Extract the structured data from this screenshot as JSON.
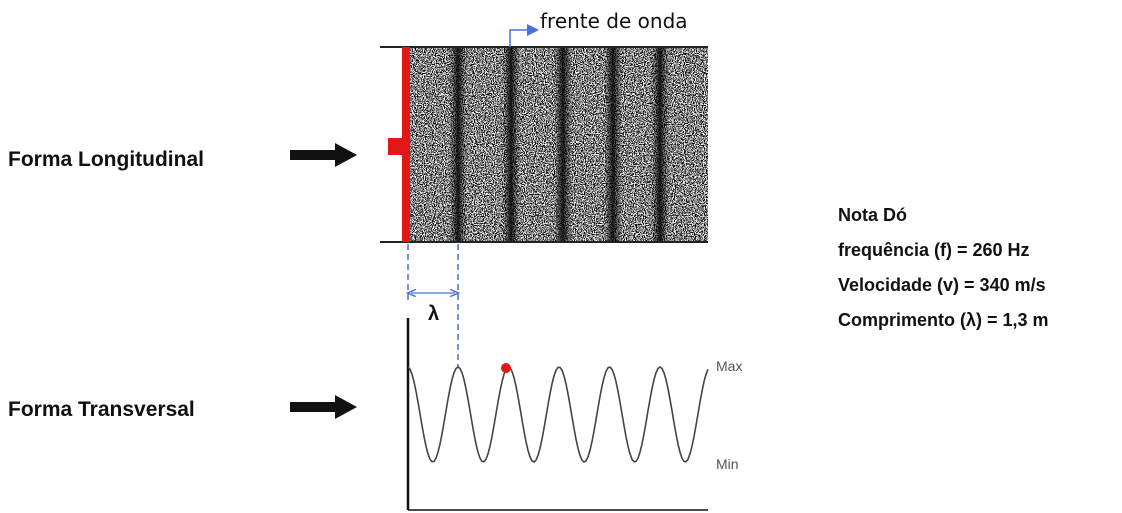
{
  "wavefront_label": "frente de onda",
  "longitudinal_label": "Forma Longitudinal",
  "transversal_label": "Forma Transversal",
  "wavelength_symbol": "λ",
  "max_label": "Max",
  "min_label": "Min",
  "info": [
    "Nota Dó",
    "frequência (f) = 260 Hz",
    "Velocidade (v) = 340 m/s",
    "Comprimento (λ) = 1,3 m"
  ]
}
